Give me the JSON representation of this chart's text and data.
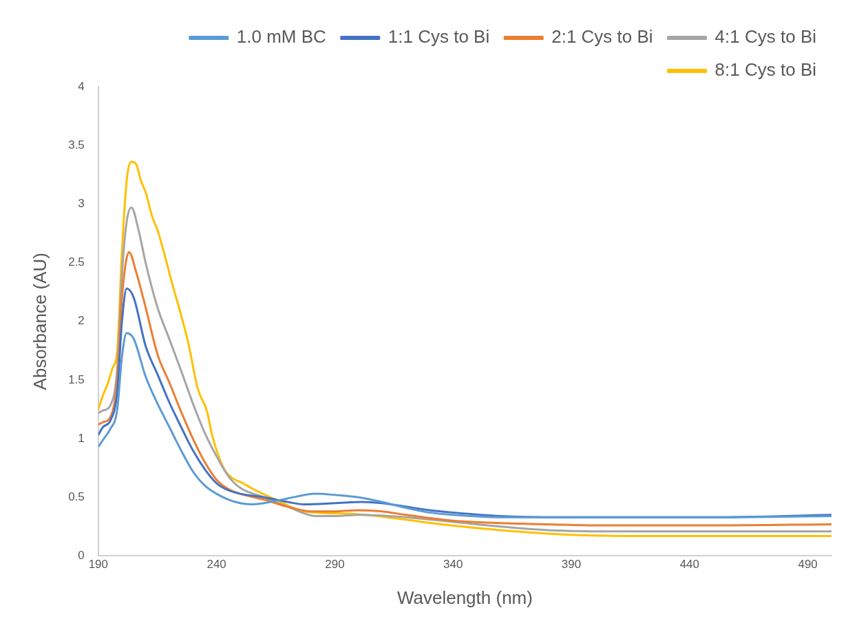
{
  "chart_data": {
    "type": "line",
    "xlabel": "Wavelength (nm)",
    "ylabel": "Absorbance (AU)",
    "xlim": [
      190,
      500
    ],
    "xticks": [
      190,
      240,
      290,
      340,
      390,
      440,
      490
    ],
    "ylim": [
      0,
      4
    ],
    "yticks": [
      0,
      0.5,
      1,
      1.5,
      2,
      2.5,
      3,
      3.5,
      4
    ],
    "grid": false,
    "legend": "top right",
    "marker": "none",
    "line_style": "solid",
    "series": [
      {
        "name": "1.0 mM BC",
        "color": "#5b9bd5",
        "x": [
          190,
          192,
          195,
          198,
          200,
          202,
          205,
          210,
          215,
          220,
          225,
          230,
          235,
          240,
          245,
          250,
          255,
          260,
          270,
          282,
          290,
          300,
          310,
          320,
          330,
          340,
          360,
          380,
          400,
          450,
          500
        ],
        "values": [
          0.93,
          0.99,
          1.08,
          1.25,
          1.7,
          1.9,
          1.85,
          1.53,
          1.3,
          1.1,
          0.9,
          0.72,
          0.6,
          0.53,
          0.48,
          0.45,
          0.44,
          0.45,
          0.49,
          0.53,
          0.52,
          0.5,
          0.46,
          0.41,
          0.37,
          0.35,
          0.33,
          0.33,
          0.33,
          0.33,
          0.34
        ]
      },
      {
        "name": "1:1 Cys to Bi",
        "color": "#4472c4",
        "x": [
          190,
          192,
          195,
          198,
          200,
          202,
          205,
          210,
          215,
          220,
          225,
          230,
          235,
          240,
          245,
          250,
          260,
          270,
          277,
          290,
          301,
          310,
          320,
          330,
          340,
          360,
          380,
          400,
          450,
          500
        ],
        "values": [
          1.03,
          1.1,
          1.15,
          1.4,
          2.0,
          2.28,
          2.2,
          1.79,
          1.55,
          1.31,
          1.1,
          0.9,
          0.74,
          0.62,
          0.56,
          0.53,
          0.5,
          0.46,
          0.44,
          0.45,
          0.46,
          0.45,
          0.42,
          0.39,
          0.37,
          0.34,
          0.33,
          0.33,
          0.33,
          0.35
        ]
      },
      {
        "name": "2:1 Cys to Bi",
        "color": "#ed7d31",
        "x": [
          190,
          192,
          195,
          198,
          200,
          203,
          206,
          210,
          215,
          220,
          225,
          230,
          235,
          240,
          245,
          250,
          260,
          270,
          280,
          290,
          300,
          310,
          320,
          340,
          360,
          380,
          400,
          450,
          500
        ],
        "values": [
          1.12,
          1.14,
          1.18,
          1.5,
          2.2,
          2.59,
          2.42,
          2.12,
          1.72,
          1.48,
          1.23,
          1.0,
          0.8,
          0.65,
          0.57,
          0.53,
          0.48,
          0.42,
          0.38,
          0.38,
          0.39,
          0.38,
          0.35,
          0.3,
          0.28,
          0.27,
          0.26,
          0.26,
          0.27
        ]
      },
      {
        "name": "4:1 Cys to Bi",
        "color": "#a5a5a5",
        "x": [
          190,
          192,
          195,
          198,
          200,
          202,
          204,
          207,
          210,
          215,
          220,
          225,
          230,
          235,
          240,
          245,
          250,
          260,
          270,
          282,
          290,
          300,
          320,
          340,
          360,
          380,
          400,
          450,
          500
        ],
        "values": [
          1.22,
          1.24,
          1.28,
          1.6,
          2.4,
          2.85,
          2.97,
          2.78,
          2.5,
          2.12,
          1.85,
          1.58,
          1.3,
          1.05,
          0.85,
          0.68,
          0.58,
          0.5,
          0.42,
          0.34,
          0.34,
          0.35,
          0.33,
          0.29,
          0.25,
          0.22,
          0.21,
          0.21,
          0.21
        ]
      },
      {
        "name": "8:1 Cys to Bi",
        "color": "#ffc000",
        "x": [
          190,
          192,
          194,
          196,
          198,
          200,
          202,
          204,
          206,
          208,
          210,
          213,
          215,
          221,
          228,
          232,
          236,
          238,
          243,
          252,
          265,
          277,
          296,
          316,
          335,
          360,
          390,
          420,
          450,
          500
        ],
        "values": [
          1.25,
          1.37,
          1.47,
          1.6,
          1.75,
          2.6,
          3.2,
          3.36,
          3.34,
          3.2,
          3.1,
          2.88,
          2.78,
          2.34,
          1.82,
          1.43,
          1.23,
          1.04,
          0.75,
          0.61,
          0.48,
          0.38,
          0.36,
          0.32,
          0.27,
          0.22,
          0.18,
          0.17,
          0.17,
          0.17
        ]
      }
    ]
  }
}
